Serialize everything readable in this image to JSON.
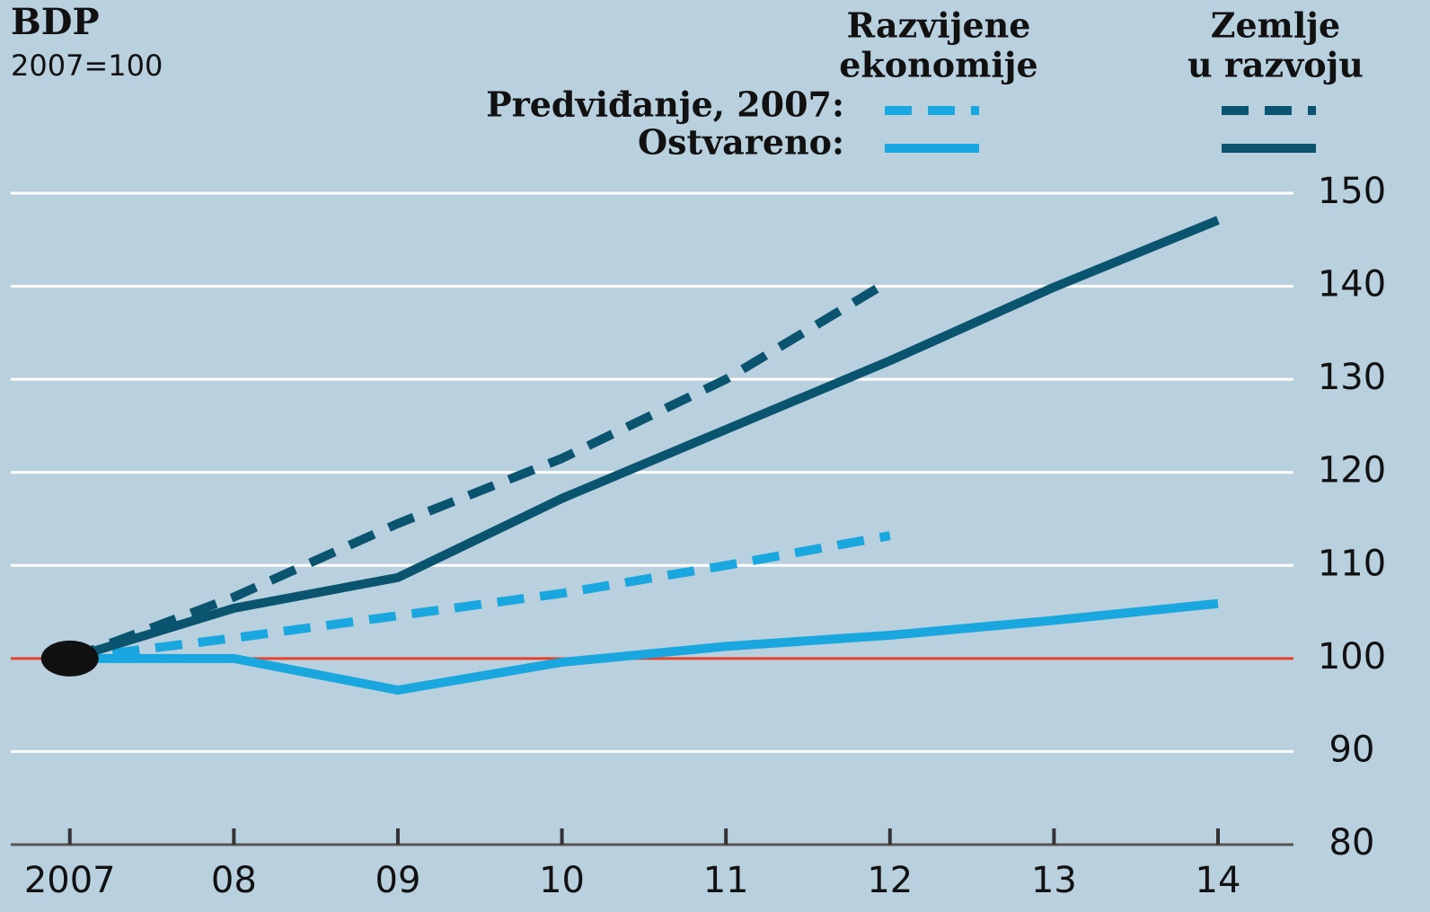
{
  "chart_data": {
    "type": "line",
    "title": "BDP",
    "subtitle": "2007=100",
    "x": [
      2007,
      2008,
      2009,
      2010,
      2011,
      2012,
      2013,
      2014
    ],
    "xlim": [
      2006.64,
      2014.46
    ],
    "xticks": [
      {
        "value": 2007,
        "label": "2007"
      },
      {
        "value": 2008,
        "label": "08"
      },
      {
        "value": 2009,
        "label": "09"
      },
      {
        "value": 2010,
        "label": "10"
      },
      {
        "value": 2011,
        "label": "11"
      },
      {
        "value": 2012,
        "label": "12"
      },
      {
        "value": 2013,
        "label": "13"
      },
      {
        "value": 2014,
        "label": "14"
      }
    ],
    "ylim": [
      80,
      150
    ],
    "yticks": [
      80,
      90,
      100,
      110,
      120,
      130,
      140,
      150
    ],
    "y_axis_side": "right",
    "grid": true,
    "reference_line": {
      "value": 100,
      "color": "#e4412c"
    },
    "legend": {
      "columns": [
        [
          "Razvijene",
          "ekonomije"
        ],
        [
          "Zemlje",
          "u razvoju"
        ]
      ],
      "rows": [
        "Predviđanje, 2007:",
        "Ostvareno:"
      ]
    },
    "series": [
      {
        "column": 0,
        "row": 0,
        "dashed": true,
        "color": "#1aa6de",
        "values": [
          100,
          102.2,
          104.6,
          107,
          110,
          113.2,
          null,
          null
        ]
      },
      {
        "column": 1,
        "row": 0,
        "dashed": true,
        "color": "#0b5470",
        "values": [
          100,
          106.6,
          114.5,
          121.5,
          130,
          140.6,
          null,
          null
        ]
      },
      {
        "column": 0,
        "row": 1,
        "dashed": false,
        "color": "#1aa6de",
        "values": [
          100,
          100,
          96.6,
          99.6,
          101.3,
          102.5,
          104.1,
          105.9
        ]
      },
      {
        "column": 1,
        "row": 1,
        "dashed": false,
        "color": "#0b5470",
        "values": [
          100,
          105.4,
          108.7,
          117.2,
          124.6,
          132,
          139.9,
          147.1
        ]
      }
    ]
  }
}
